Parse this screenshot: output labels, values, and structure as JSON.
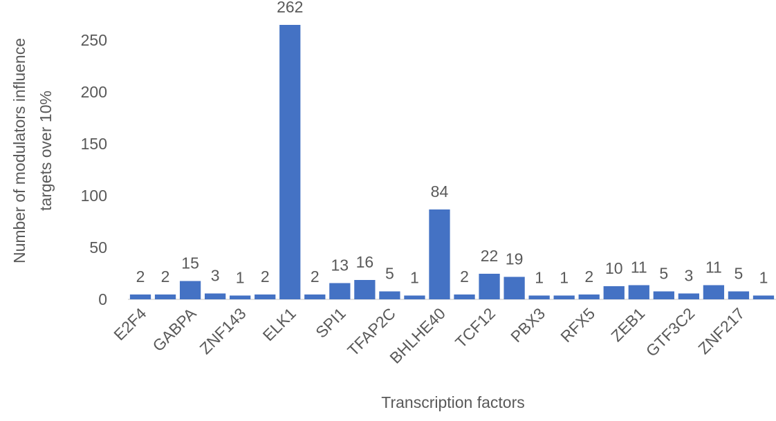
{
  "chart_data": {
    "type": "bar",
    "x_label": "Transcription factors",
    "y_label": [
      "Number of modulators influence",
      "targets over 10%"
    ],
    "categories": [
      "E2F4",
      null,
      "GABPA",
      null,
      "ZNF143",
      null,
      "ELK1",
      null,
      "SPI1",
      null,
      "TFAP2C",
      null,
      "BHLHE40",
      null,
      "TCF12",
      null,
      "PBX3",
      null,
      "RFX5",
      null,
      "ZEB1",
      null,
      "GTF3C2",
      null,
      "ZNF217",
      null
    ],
    "values": [
      2,
      2,
      15,
      3,
      1,
      2,
      262,
      2,
      13,
      16,
      5,
      1,
      84,
      2,
      22,
      19,
      1,
      1,
      2,
      10,
      11,
      5,
      3,
      11,
      5,
      1
    ],
    "color": "#4472c4",
    "ylim": [
      0,
      270
    ],
    "yticks": [
      0,
      50,
      100,
      150,
      200,
      250
    ],
    "grid": false
  }
}
